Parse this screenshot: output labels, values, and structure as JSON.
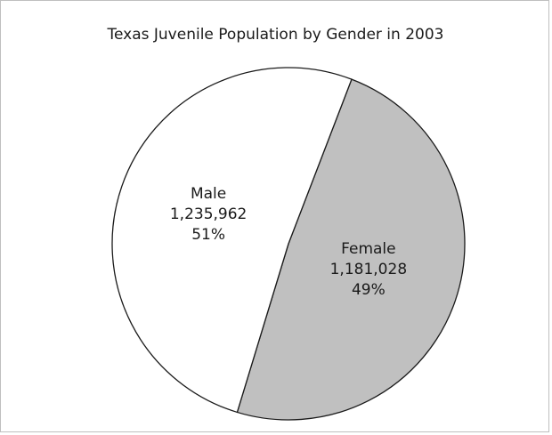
{
  "chart_data": {
    "type": "pie",
    "title": "Texas Juvenile Population by Gender in 2003",
    "slices": [
      {
        "label": "Male",
        "value": 1235962,
        "value_text": "1,235,962",
        "percent_text": "51%",
        "color": "#ffffff"
      },
      {
        "label": "Female",
        "value": 1181028,
        "value_text": "1,181,028",
        "percent_text": "49%",
        "color": "#c0c0c0"
      }
    ],
    "legend": "none"
  }
}
